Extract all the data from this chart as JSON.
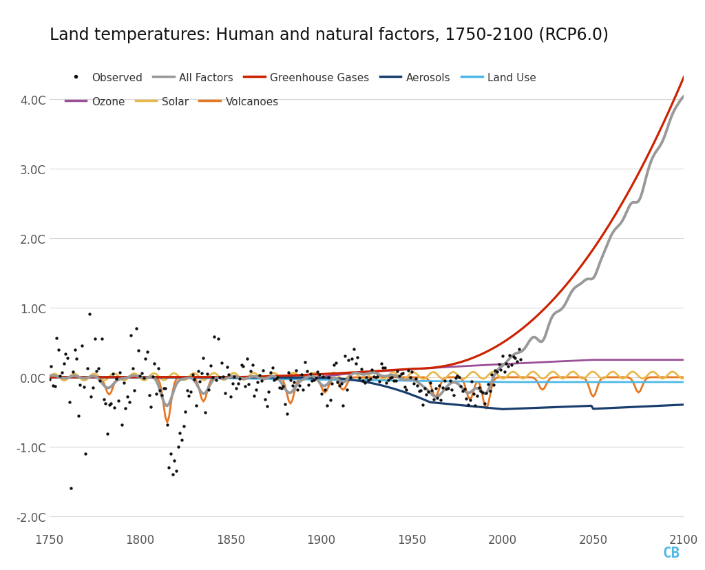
{
  "title": "Land temperatures: Human and natural factors, 1750-2100 (RCP6.0)",
  "title_fontsize": 17,
  "xlim": [
    1750,
    2100
  ],
  "ylim": [
    -2.2,
    4.7
  ],
  "yticks": [
    -2.0,
    -1.0,
    0.0,
    1.0,
    2.0,
    3.0,
    4.0
  ],
  "ytick_labels": [
    "-2.0C",
    "-1.0C",
    "0.0C",
    "1.0C",
    "2.0C",
    "3.0C",
    "4.0C"
  ],
  "xticks": [
    1750,
    1800,
    1850,
    1900,
    1950,
    2000,
    2050,
    2100
  ],
  "background_color": "#ffffff",
  "grid_color": "#d8d8d8",
  "series_colors": {
    "all_factors": "#999999",
    "greenhouse": "#cc2200",
    "aerosols": "#1a3f6f",
    "land_use": "#4db8e8",
    "ozone": "#9b4f96",
    "solar": "#e8b84b",
    "volcanoes": "#e87722",
    "observed": "#111111"
  },
  "cb_color": "#4db8e8",
  "cb_text": "CB"
}
